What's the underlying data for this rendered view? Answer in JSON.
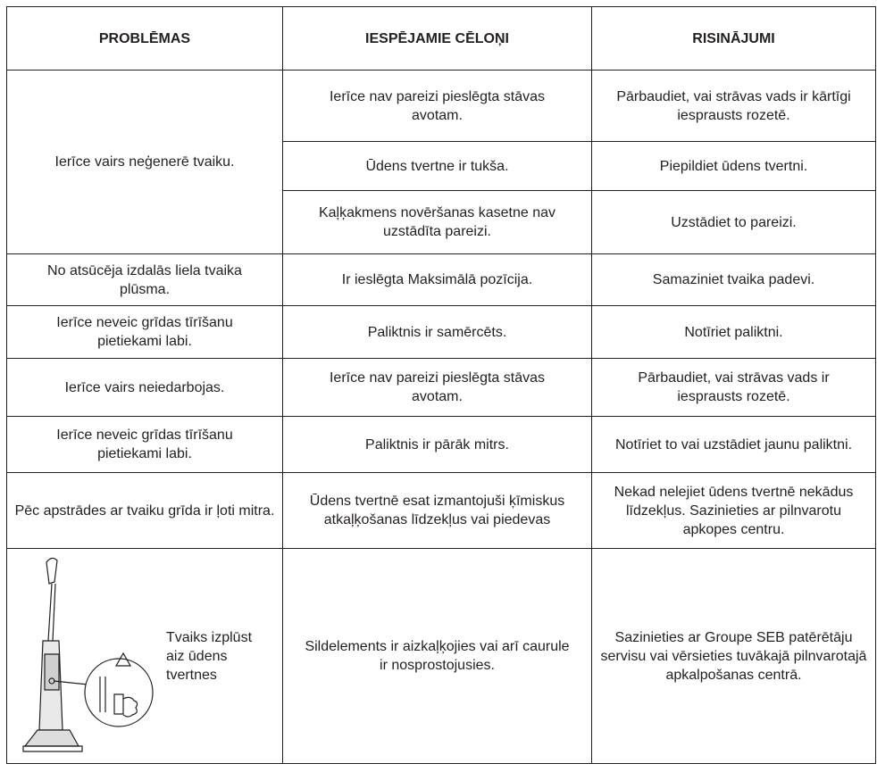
{
  "table": {
    "header": [
      "PROBLĒMAS",
      "IESPĒJAMIE CĒLOŅI",
      "RISINĀJUMI"
    ],
    "rows": [
      {
        "problem": "Ierīce vairs neģenerē tvaiku.",
        "causes": [
          {
            "cause": "Ierīce nav pareizi pieslēgta stāvas avotam.",
            "solution": "Pārbaudiet, vai strāvas vads ir kārtīgi iesprausts rozetē."
          },
          {
            "cause": "Ūdens tvertne ir tukša.",
            "solution": "Piepildiet ūdens tvertni."
          },
          {
            "cause": "Kaļķakmens novēršanas kasetne nav uzstādīta pareizi.",
            "solution": "Uzstādiet to pareizi."
          }
        ]
      },
      {
        "problem": "No atsūcēja izdalās liela tvaika plūsma.",
        "causes": [
          {
            "cause": "Ir ieslēgta Maksimālā pozīcija.",
            "solution": "Samaziniet tvaika padevi."
          }
        ]
      },
      {
        "problem": "Ierīce neveic grīdas tīrīšanu pietiekami labi.",
        "causes": [
          {
            "cause": "Paliktnis ir samērcēts.",
            "solution": "Notīriet paliktni."
          }
        ]
      },
      {
        "problem": "Ierīce vairs neiedarbojas.",
        "causes": [
          {
            "cause": "Ierīce nav pareizi pieslēgta stāvas avotam.",
            "solution": "Pārbaudiet, vai strāvas vads ir iesprausts rozetē."
          }
        ]
      },
      {
        "problem": "Ierīce neveic grīdas tīrīšanu pietiekami labi.",
        "causes": [
          {
            "cause": "Paliktnis ir pārāk mitrs.",
            "solution": "Notīriet to vai uzstādiet jaunu paliktni."
          }
        ]
      },
      {
        "problem": "Pēc apstrādes ar tvaiku grīda ir ļoti mitra.",
        "causes": [
          {
            "cause": "Ūdens tvertnē esat izmantojuši ķīmiskus atkaļķošanas līdzekļus vai piedevas",
            "solution": "Nekad nelejiet ūdens tvertnē nekādus līdzekļus. Sazinieties ar pilnvarotu apkopes centru."
          }
        ]
      },
      {
        "problem": "Tvaiks izplūst aiz ūdens tvertnes",
        "causes": [
          {
            "cause": "Sildelements ir aizkaļķojies vai arī caurule ir nosprostojusies.",
            "solution": "Sazinieties ar Groupe SEB patērētāju servisu vai vērsieties tuvākajā pilnvarotajā apkalpošanas centrā."
          }
        ]
      }
    ]
  }
}
